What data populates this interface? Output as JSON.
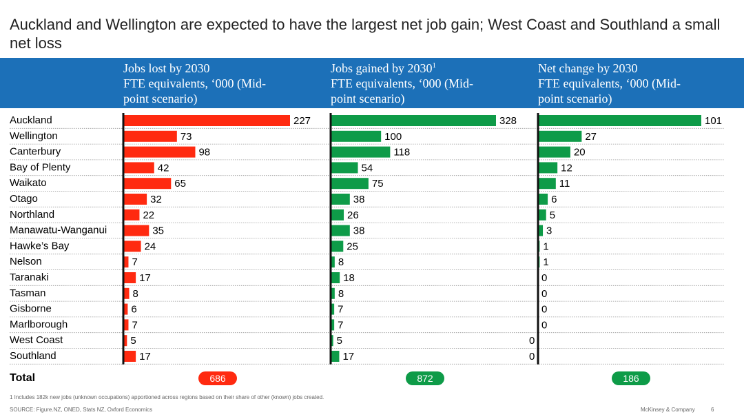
{
  "title": "Auckland and Wellington are expected to have the largest net job gain; West Coast and Southland a small net loss",
  "columns": [
    {
      "heading": "Jobs lost by 2030",
      "sup": "",
      "sub1": "FTE equivalents, ‘000 (Mid-",
      "sub2": "point scenario)"
    },
    {
      "heading": "Jobs gained by 2030",
      "sup": "1",
      "sub1": "FTE equivalents, ‘000 (Mid-",
      "sub2": "point scenario)"
    },
    {
      "heading": "Net change by 2030",
      "sup": "",
      "sub1": "FTE equivalents, ‘000 (Mid-",
      "sub2": "point scenario)"
    }
  ],
  "total_label": "Total",
  "totals": [
    "686",
    "872",
    "186"
  ],
  "colors": {
    "lost": "#ff2a10",
    "gained": "#0e9b48",
    "header": "#1c70b8"
  },
  "footnote": "1 Includes 182k new jobs (unknown occupations) apportioned across regions based on their share of other (known) jobs created.",
  "source": "SOURCE: Figure.NZ, ONED, Stats NZ, Oxford Economics",
  "brand": "McKinsey & Company",
  "page_number": "6",
  "chart_data": {
    "type": "bar",
    "orientation": "horizontal",
    "categories": [
      "Auckland",
      "Wellington",
      "Canterbury",
      "Bay of Plenty",
      "Waikato",
      "Otago",
      "Northland",
      "Manawatu-Wanganui",
      "Hawke’s Bay",
      "Nelson",
      "Taranaki",
      "Tasman",
      "Gisborne",
      "Marlborough",
      "West Coast",
      "Southland"
    ],
    "series": [
      {
        "name": "Jobs lost by 2030",
        "values": [
          227,
          73,
          98,
          42,
          65,
          32,
          22,
          35,
          24,
          7,
          17,
          8,
          6,
          7,
          5,
          17
        ]
      },
      {
        "name": "Jobs gained by 2030",
        "values": [
          328,
          100,
          118,
          54,
          75,
          38,
          26,
          38,
          25,
          8,
          18,
          8,
          7,
          7,
          5,
          17
        ]
      },
      {
        "name": "Net change by 2030",
        "values": [
          101,
          27,
          20,
          12,
          11,
          6,
          5,
          3,
          1,
          1,
          0,
          0,
          0,
          0,
          0,
          0
        ]
      }
    ],
    "gridlines": "dotted row separators"
  }
}
